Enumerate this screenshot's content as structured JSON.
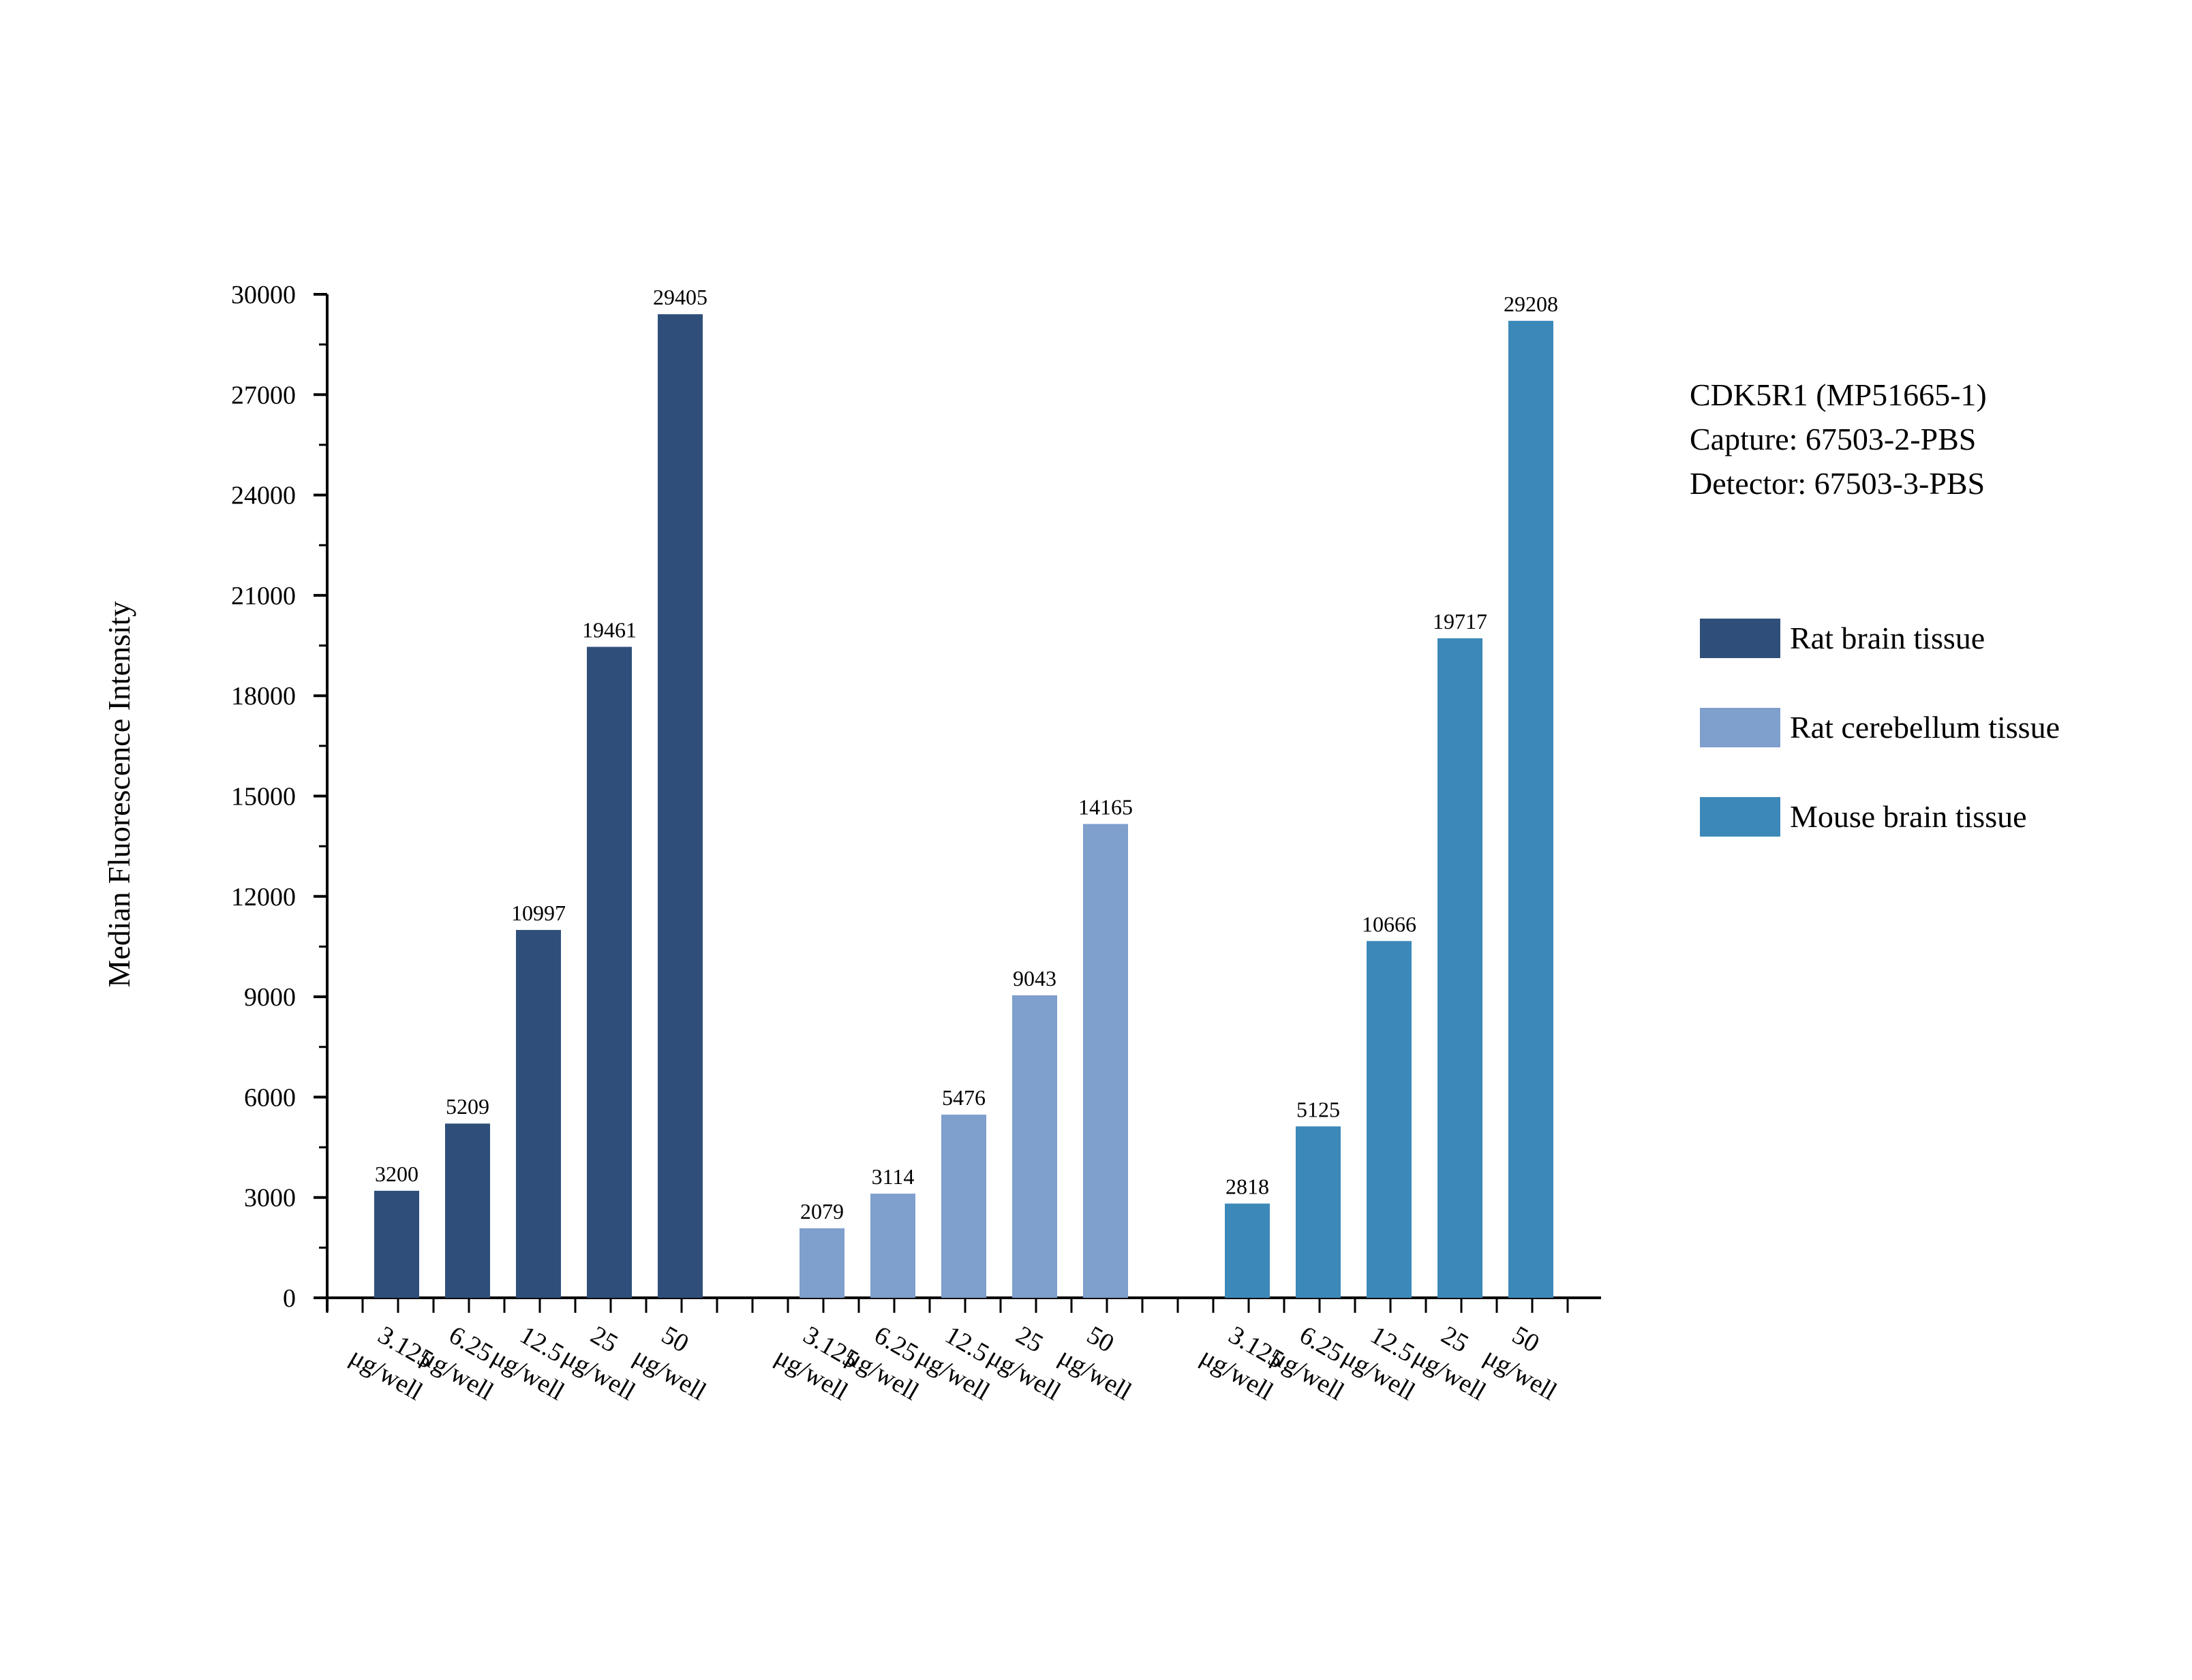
{
  "chart_data": {
    "type": "bar",
    "ylabel": "Median Fluorescence Intensity",
    "xlabel": "",
    "ylim": [
      0,
      30000
    ],
    "yticks": [
      0,
      3000,
      6000,
      9000,
      12000,
      15000,
      18000,
      21000,
      24000,
      27000,
      30000
    ],
    "categories": [
      "3.125 μg/well",
      "6.25 μg/well",
      "12.5 μg/well",
      "25 μg/well",
      "50 μg/well"
    ],
    "series": [
      {
        "name": "Rat brain tissue",
        "color": "#2f4f7a",
        "values": [
          3200,
          5209,
          10997,
          19461,
          29405
        ]
      },
      {
        "name": "Rat cerebellum tissue",
        "color": "#7f9fcc",
        "values": [
          2079,
          3114,
          5476,
          9043,
          14165
        ]
      },
      {
        "name": "Mouse brain tissue",
        "color": "#3c89b9",
        "values": [
          2818,
          5125,
          10666,
          19717,
          29208
        ]
      }
    ],
    "annotation": [
      "CDK5R1 (MP51665-1)",
      "Capture: 67503-2-PBS",
      "Detector: 67503-3-PBS"
    ],
    "legend_position": "right",
    "grid": false
  }
}
